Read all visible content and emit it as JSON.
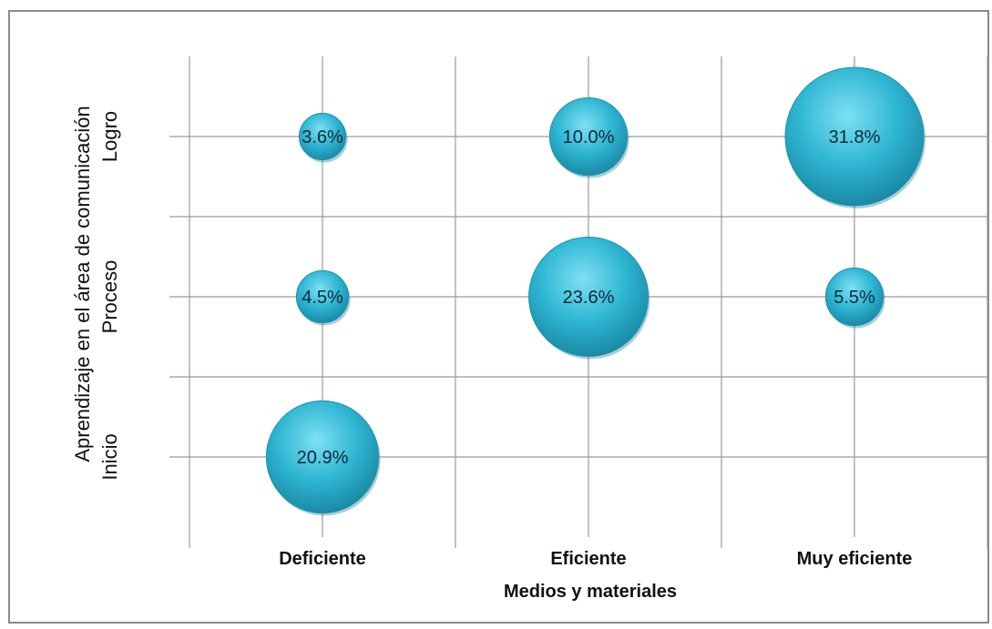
{
  "chart_data": {
    "type": "bubble",
    "x_categories": [
      "Deficiente",
      "Eficiente",
      "Muy eficiente"
    ],
    "y_categories": [
      "Inicio",
      "Proceso",
      "Logro"
    ],
    "xlabel": "Medios y materiales",
    "ylabel": "Aprendizaje en el área de comunicación",
    "points": [
      {
        "x": "Deficiente",
        "y": "Logro",
        "value": 3.6,
        "label": "3.6%"
      },
      {
        "x": "Eficiente",
        "y": "Logro",
        "value": 10.0,
        "label": "10.0%"
      },
      {
        "x": "Muy eficiente",
        "y": "Logro",
        "value": 31.8,
        "label": "31.8%"
      },
      {
        "x": "Deficiente",
        "y": "Proceso",
        "value": 4.5,
        "label": "4.5%"
      },
      {
        "x": "Eficiente",
        "y": "Proceso",
        "value": 23.6,
        "label": "23.6%"
      },
      {
        "x": "Muy eficiente",
        "y": "Proceso",
        "value": 5.5,
        "label": "5.5%"
      },
      {
        "x": "Deficiente",
        "y": "Inicio",
        "value": 20.9,
        "label": "20.9%"
      }
    ],
    "bubble_color": "#2fb6d3",
    "grid": true
  }
}
